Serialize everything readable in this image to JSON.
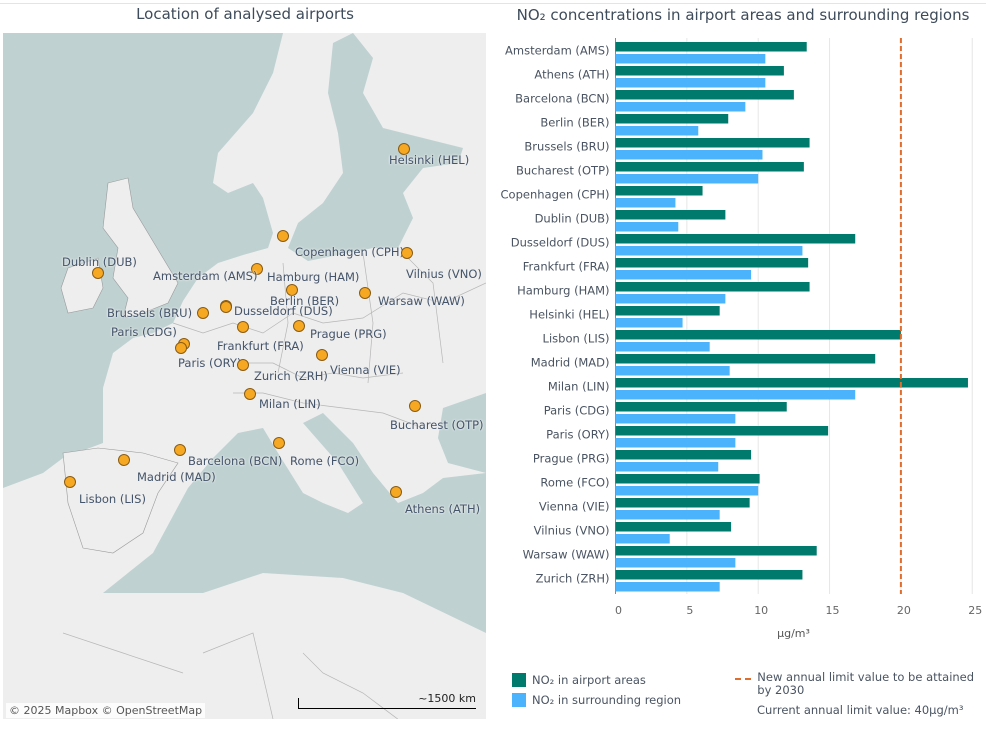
{
  "map": {
    "title": "Location of analysed airports",
    "attribution": "© 2025 Mapbox  © OpenStreetMap",
    "scale_label": "~1500 km",
    "marker_color": "#f7a823",
    "land_color": "#eeeeee",
    "water_color": "#bfd1d1",
    "airports": [
      {
        "label": "Helsinki (HEL)"
      },
      {
        "label": "Copenhagen (CPH)"
      },
      {
        "label": "Vilnius (VNO)"
      },
      {
        "label": "Dublin (DUB)"
      },
      {
        "label": "Amsterdam (AMS)"
      },
      {
        "label": "Hamburg (HAM)"
      },
      {
        "label": "Berlin (BER)"
      },
      {
        "label": "Warsaw (WAW)"
      },
      {
        "label": "Brussels (BRU)"
      },
      {
        "label": "Dusseldorf (DUS)"
      },
      {
        "label": "Paris (CDG)"
      },
      {
        "label": "Frankfurt (FRA)"
      },
      {
        "label": "Prague (PRG)"
      },
      {
        "label": "Paris (ORY)"
      },
      {
        "label": "Zurich (ZRH)"
      },
      {
        "label": "Vienna (VIE)"
      },
      {
        "label": "Milan (LIN)"
      },
      {
        "label": "Bucharest (OTP)"
      },
      {
        "label": "Barcelona (BCN)"
      },
      {
        "label": "Rome (FCO)"
      },
      {
        "label": "Madrid (MAD)"
      },
      {
        "label": "Lisbon (LIS)"
      },
      {
        "label": "Athens (ATH)"
      }
    ]
  },
  "chart_data": {
    "type": "bar",
    "orientation": "horizontal",
    "title": "NO₂ concentrations in airport areas and surrounding regions",
    "xlabel": "µg/m³",
    "ylabel": "",
    "xlim": [
      0,
      25
    ],
    "xticks": [
      "0",
      "5",
      "10",
      "15",
      "20",
      "25"
    ],
    "grid": true,
    "categories": [
      "Amsterdam (AMS)",
      "Athens (ATH)",
      "Barcelona (BCN)",
      "Berlin (BER)",
      "Brussels (BRU)",
      "Bucharest (OTP)",
      "Copenhagen (CPH)",
      "Dublin (DUB)",
      "Dusseldorf (DUS)",
      "Frankfurt (FRA)",
      "Hamburg (HAM)",
      "Helsinki (HEL)",
      "Lisbon (LIS)",
      "Madrid (MAD)",
      "Milan (LIN)",
      "Paris (CDG)",
      "Paris (ORY)",
      "Prague (PRG)",
      "Rome (FCO)",
      "Vienna (VIE)",
      "Vilnius (VNO)",
      "Warsaw (WAW)",
      "Zurich (ZRH)"
    ],
    "series": [
      {
        "name": "NO₂ in airport areas",
        "color": "#007a6c",
        "values": [
          13.4,
          11.8,
          12.5,
          7.9,
          13.6,
          13.2,
          6.1,
          7.7,
          16.8,
          13.5,
          13.6,
          7.3,
          20.0,
          18.2,
          24.7,
          12.0,
          14.9,
          9.5,
          10.1,
          9.4,
          8.1,
          14.1,
          13.1
        ]
      },
      {
        "name": "NO₂ in surrounding region",
        "color": "#4ab3fc",
        "values": [
          10.5,
          10.5,
          9.1,
          5.8,
          10.3,
          10.0,
          4.2,
          4.4,
          13.1,
          9.5,
          7.7,
          4.7,
          6.6,
          8.0,
          16.8,
          8.4,
          8.4,
          7.2,
          10.0,
          7.3,
          3.8,
          8.4,
          7.3
        ]
      }
    ],
    "reference_line": {
      "value": 20,
      "label": "New annual limit value to be attained by 2030",
      "color": "#e06c2e",
      "style": "dashed"
    },
    "legend": {
      "placement": "bottom",
      "items": [
        {
          "label": "NO₂ in airport areas",
          "color": "#007a6c"
        },
        {
          "label": "NO₂ in surrounding region",
          "color": "#4ab3fc"
        }
      ],
      "line_item": "New annual limit value to be attained by 2030",
      "note": "Current annual limit value: 40µg/m³"
    }
  }
}
